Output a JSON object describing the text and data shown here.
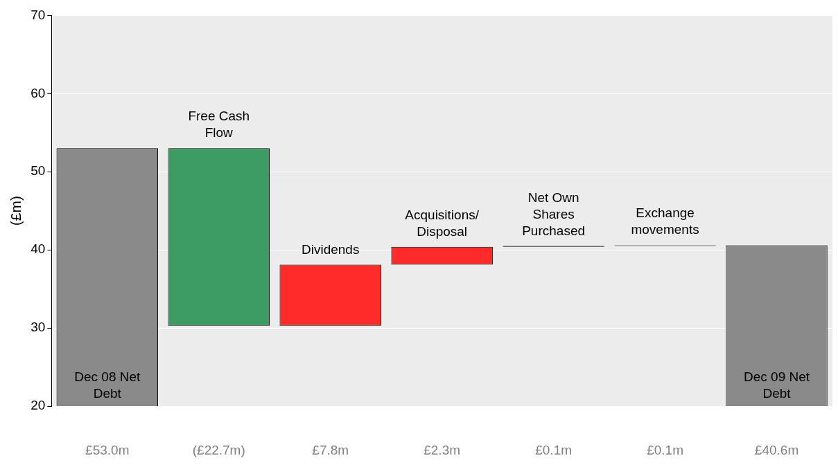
{
  "chart_data": {
    "type": "bar",
    "ylabel": "(£m)",
    "categories": [
      "Dec 08 Net Debt",
      "Free Cash Flow",
      "Dividends",
      "Acquisitions/ Disposal",
      "Net Own Shares Purchased",
      "Exchange movements",
      "Dec 09 Net Debt"
    ],
    "values": [
      53,
      22.7,
      7.8,
      2.3,
      0.1,
      0.1,
      40.6
    ],
    "base": [
      null,
      30.3,
      30.3,
      38.1,
      40.4,
      40.5,
      null
    ],
    "colors": [
      "#8a8a8a",
      "#3d9a63",
      "#ff2a2a",
      "#ff2a2a",
      "#000000",
      "#000000",
      "#8a8a8a"
    ],
    "value_labels": [
      "£53.0m",
      "(£22.7m)",
      "£7.8m",
      "£2.3m",
      "£0.1m",
      "£0.1m",
      "£40.6m"
    ],
    "ylim": [
      20,
      70
    ],
    "yticks": [
      20,
      30,
      40,
      50,
      60,
      70
    ],
    "grid": "y",
    "legend": false
  }
}
